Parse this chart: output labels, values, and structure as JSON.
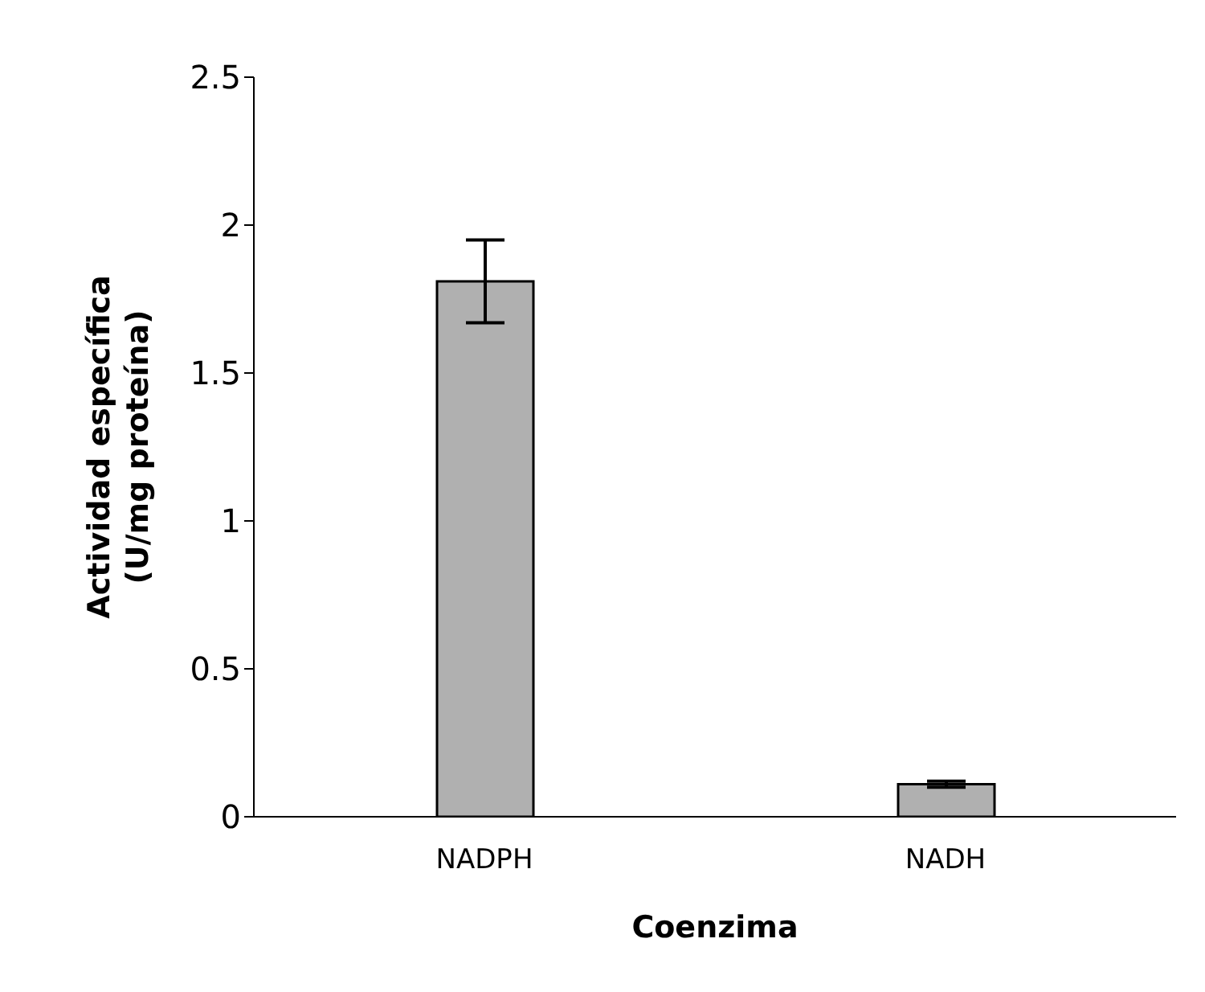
{
  "chart_data": {
    "type": "bar",
    "xlabel": "Coenzima",
    "ylabel": "Actividad específica (U/mg proteína)",
    "categories": [
      "NADPH",
      "NADH"
    ],
    "values": [
      1.81,
      0.11
    ],
    "errors": [
      0.14,
      0.01
    ],
    "color": "#b0b0b0",
    "ylim": [
      0,
      2.5
    ],
    "yticks": [
      0,
      0.5,
      1,
      1.5,
      2,
      2.5
    ],
    "grid": false
  }
}
